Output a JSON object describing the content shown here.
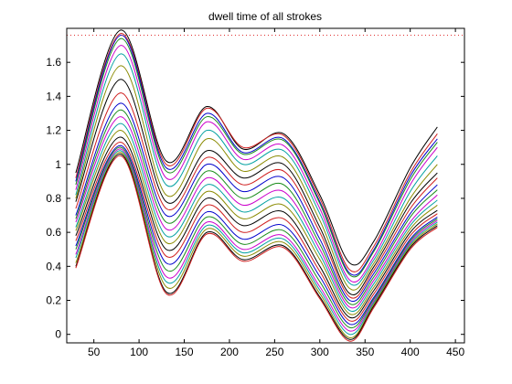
{
  "chart_data": {
    "type": "line",
    "title": "dwell time of all strokes",
    "xlabel": "",
    "ylabel": "",
    "xlim": [
      20,
      460
    ],
    "ylim": [
      -0.05,
      1.8
    ],
    "xticks": [
      50,
      100,
      150,
      200,
      250,
      300,
      350,
      400,
      450
    ],
    "yticks": [
      0,
      0.2,
      0.4,
      0.6,
      0.8,
      1,
      1.2,
      1.4,
      1.6
    ],
    "xtick_labels": [
      "50",
      "100",
      "150",
      "200",
      "250",
      "300",
      "350",
      "400",
      "450"
    ],
    "ytick_labels": [
      "0",
      "0.2",
      "0.4",
      "0.6",
      "0.8",
      "1",
      "1.2",
      "1.4",
      "1.6"
    ],
    "grid": false,
    "reference_line": {
      "y": 1.76,
      "color": "#e03030",
      "style": "dotted"
    },
    "x": [
      30,
      80,
      130,
      175,
      215,
      260,
      300,
      333,
      360,
      400,
      430
    ],
    "series": [
      {
        "color": "#000000",
        "values": [
          0.95,
          1.79,
          1.02,
          1.34,
          1.09,
          1.18,
          0.82,
          0.42,
          0.55,
          0.98,
          1.22
        ]
      },
      {
        "color": "#d02020",
        "values": [
          0.92,
          1.77,
          1.0,
          1.33,
          1.1,
          1.17,
          0.8,
          0.38,
          0.52,
          0.95,
          1.18
        ]
      },
      {
        "color": "#0000cc",
        "values": [
          0.9,
          1.76,
          0.98,
          1.3,
          1.07,
          1.15,
          0.78,
          0.36,
          0.5,
          0.93,
          1.15
        ]
      },
      {
        "color": "#1a8c1a",
        "values": [
          0.88,
          1.74,
          0.96,
          1.28,
          1.06,
          1.14,
          0.77,
          0.35,
          0.49,
          0.91,
          1.13
        ]
      },
      {
        "color": "#cc00cc",
        "values": [
          0.85,
          1.7,
          0.92,
          1.25,
          1.03,
          1.11,
          0.74,
          0.32,
          0.46,
          0.88,
          1.1
        ]
      },
      {
        "color": "#00a0a0",
        "values": [
          0.82,
          1.65,
          0.88,
          1.2,
          1.0,
          1.08,
          0.71,
          0.3,
          0.44,
          0.84,
          1.05
        ]
      },
      {
        "color": "#8a8a00",
        "values": [
          0.8,
          1.58,
          0.82,
          1.15,
          0.96,
          1.04,
          0.67,
          0.27,
          0.42,
          0.8,
          1.0
        ]
      },
      {
        "color": "#000000",
        "values": [
          0.78,
          1.5,
          0.78,
          1.08,
          0.92,
          1.0,
          0.63,
          0.24,
          0.4,
          0.77,
          0.95
        ]
      },
      {
        "color": "#d02020",
        "values": [
          0.74,
          1.42,
          0.74,
          1.04,
          0.88,
          0.96,
          0.6,
          0.22,
          0.38,
          0.74,
          0.92
        ]
      },
      {
        "color": "#0000cc",
        "values": [
          0.7,
          1.36,
          0.7,
          1.0,
          0.84,
          0.92,
          0.56,
          0.2,
          0.36,
          0.71,
          0.88
        ]
      },
      {
        "color": "#1a8c1a",
        "values": [
          0.68,
          1.32,
          0.66,
          0.96,
          0.8,
          0.88,
          0.53,
          0.18,
          0.34,
          0.69,
          0.85
        ]
      },
      {
        "color": "#cc00cc",
        "values": [
          0.66,
          1.28,
          0.62,
          0.92,
          0.76,
          0.84,
          0.5,
          0.16,
          0.32,
          0.66,
          0.82
        ]
      },
      {
        "color": "#00a0a0",
        "values": [
          0.63,
          1.24,
          0.58,
          0.88,
          0.72,
          0.8,
          0.47,
          0.14,
          0.3,
          0.64,
          0.79
        ]
      },
      {
        "color": "#8a8a00",
        "values": [
          0.61,
          1.2,
          0.54,
          0.84,
          0.68,
          0.76,
          0.44,
          0.12,
          0.28,
          0.62,
          0.76
        ]
      },
      {
        "color": "#000000",
        "values": [
          0.58,
          1.16,
          0.5,
          0.8,
          0.64,
          0.72,
          0.4,
          0.1,
          0.26,
          0.6,
          0.73
        ]
      },
      {
        "color": "#d02020",
        "values": [
          0.55,
          1.13,
          0.46,
          0.76,
          0.6,
          0.68,
          0.37,
          0.08,
          0.24,
          0.58,
          0.71
        ]
      },
      {
        "color": "#0000cc",
        "values": [
          0.52,
          1.11,
          0.42,
          0.72,
          0.56,
          0.64,
          0.34,
          0.06,
          0.22,
          0.56,
          0.69
        ]
      },
      {
        "color": "#1a8c1a",
        "values": [
          0.5,
          1.1,
          0.38,
          0.69,
          0.53,
          0.61,
          0.31,
          0.04,
          0.21,
          0.55,
          0.68
        ]
      },
      {
        "color": "#cc00cc",
        "values": [
          0.47,
          1.09,
          0.34,
          0.66,
          0.5,
          0.58,
          0.28,
          0.02,
          0.2,
          0.54,
          0.67
        ]
      },
      {
        "color": "#00a0a0",
        "values": [
          0.45,
          1.08,
          0.31,
          0.64,
          0.48,
          0.56,
          0.26,
          0.0,
          0.19,
          0.53,
          0.66
        ]
      },
      {
        "color": "#8a8a00",
        "values": [
          0.42,
          1.07,
          0.28,
          0.62,
          0.46,
          0.54,
          0.24,
          -0.02,
          0.18,
          0.52,
          0.65
        ]
      },
      {
        "color": "#000000",
        "values": [
          0.4,
          1.06,
          0.25,
          0.6,
          0.44,
          0.52,
          0.22,
          -0.03,
          0.17,
          0.51,
          0.64
        ]
      },
      {
        "color": "#d02020",
        "values": [
          0.39,
          1.05,
          0.24,
          0.59,
          0.43,
          0.51,
          0.21,
          -0.04,
          0.16,
          0.5,
          0.63
        ]
      }
    ]
  }
}
